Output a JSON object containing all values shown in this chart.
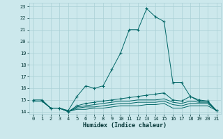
{
  "xlabel": "Humidex (Indice chaleur)",
  "background_color": "#cce8ec",
  "grid_color": "#aad0d6",
  "line_color": "#006666",
  "xlim": [
    -0.5,
    21.5
  ],
  "ylim": [
    13.8,
    23.3
  ],
  "xticks": [
    0,
    1,
    2,
    3,
    4,
    5,
    6,
    7,
    8,
    9,
    10,
    11,
    12,
    13,
    14,
    15,
    16,
    17,
    18,
    19,
    20,
    21
  ],
  "yticks": [
    14,
    15,
    16,
    17,
    18,
    19,
    20,
    21,
    22,
    23
  ],
  "lines": [
    {
      "x": [
        0,
        1,
        2,
        3,
        4,
        5,
        6,
        7,
        8,
        9,
        10,
        11,
        12,
        13,
        14,
        15,
        16,
        17,
        18,
        19,
        20,
        21
      ],
      "y": [
        15.0,
        15.0,
        14.3,
        14.3,
        14.1,
        15.3,
        16.2,
        16.0,
        16.2,
        17.6,
        19.0,
        21.0,
        21.0,
        22.8,
        22.1,
        21.7,
        16.5,
        16.5,
        15.3,
        15.0,
        14.9,
        14.1
      ],
      "marker": "+"
    },
    {
      "x": [
        0,
        1,
        2,
        3,
        4,
        5,
        6,
        7,
        8,
        9,
        10,
        11,
        12,
        13,
        14,
        15,
        16,
        17,
        18,
        19,
        20,
        21
      ],
      "y": [
        14.9,
        14.9,
        14.3,
        14.3,
        14.0,
        14.5,
        14.7,
        14.8,
        14.9,
        15.0,
        15.1,
        15.2,
        15.3,
        15.4,
        15.5,
        15.6,
        15.0,
        14.9,
        15.3,
        14.9,
        14.9,
        14.1
      ],
      "marker": "+"
    },
    {
      "x": [
        0,
        1,
        2,
        3,
        4,
        5,
        6,
        7,
        8,
        9,
        10,
        11,
        12,
        13,
        14,
        15,
        16,
        17,
        18,
        19,
        20,
        21
      ],
      "y": [
        14.9,
        14.9,
        14.3,
        14.3,
        14.0,
        14.4,
        14.5,
        14.6,
        14.7,
        14.8,
        14.9,
        14.9,
        15.0,
        15.0,
        15.0,
        15.1,
        14.8,
        14.7,
        14.9,
        14.8,
        14.8,
        14.1
      ],
      "marker": null
    },
    {
      "x": [
        0,
        1,
        2,
        3,
        4,
        5,
        6,
        7,
        8,
        9,
        10,
        11,
        12,
        13,
        14,
        15,
        16,
        17,
        18,
        19,
        20,
        21
      ],
      "y": [
        14.9,
        14.9,
        14.3,
        14.3,
        14.0,
        14.3,
        14.4,
        14.4,
        14.5,
        14.6,
        14.7,
        14.7,
        14.8,
        14.8,
        14.8,
        14.9,
        14.6,
        14.5,
        14.7,
        14.7,
        14.7,
        14.1
      ],
      "marker": null
    },
    {
      "x": [
        0,
        1,
        2,
        3,
        4,
        5,
        6,
        7,
        8,
        9,
        10,
        11,
        12,
        13,
        14,
        15,
        16,
        17,
        18,
        19,
        20,
        21
      ],
      "y": [
        14.9,
        14.9,
        14.3,
        14.3,
        14.0,
        14.2,
        14.2,
        14.3,
        14.3,
        14.4,
        14.5,
        14.5,
        14.5,
        14.6,
        14.6,
        14.7,
        14.3,
        14.3,
        14.5,
        14.5,
        14.5,
        14.1
      ],
      "marker": null
    }
  ]
}
